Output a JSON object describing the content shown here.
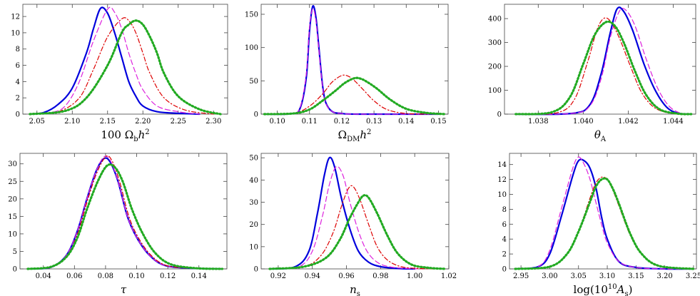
{
  "colors": {
    "blue": "#0000dd",
    "magenta": "#dd22dd",
    "red": "#dd0000",
    "green": "#22aa22"
  },
  "chart_data": [
    {
      "type": "line",
      "xlabel_parts": [
        [
          "100 Ω",
          "n"
        ],
        [
          "b",
          "sub"
        ],
        [
          "h",
          "it"
        ],
        [
          "2",
          "sup"
        ]
      ],
      "xlim": [
        2.03,
        2.32
      ],
      "ylim": [
        0,
        13.5
      ],
      "xticks": [
        2.05,
        2.1,
        2.15,
        2.2,
        2.25,
        2.3
      ],
      "xtick_labels": [
        "2.05",
        "2.10",
        "2.15",
        "2.20",
        "2.25",
        "2.30"
      ],
      "yticks": [
        0,
        2,
        4,
        6,
        8,
        10,
        12
      ],
      "ytick_labels": [
        "0",
        "2",
        "4",
        "6",
        "8",
        "10",
        "12"
      ],
      "series": [
        {
          "color": "blue",
          "style": "solid",
          "x": [
            2.04,
            2.06,
            2.08,
            2.1,
            2.12,
            2.13,
            2.14,
            2.15,
            2.16,
            2.17,
            2.18,
            2.19,
            2.2,
            2.22,
            2.25,
            2.28
          ],
          "y": [
            0,
            0.2,
            1.2,
            3.2,
            7.5,
            10.5,
            13.0,
            12.4,
            10.0,
            7.0,
            4.0,
            2.2,
            1.0,
            0.3,
            0.1,
            0
          ]
        },
        {
          "color": "magenta",
          "style": "dash",
          "x": [
            2.04,
            2.07,
            2.09,
            2.11,
            2.13,
            2.15,
            2.16,
            2.17,
            2.18,
            2.19,
            2.2,
            2.22,
            2.25,
            2.28
          ],
          "y": [
            0,
            0.2,
            1.0,
            4.0,
            9.0,
            12.9,
            12.5,
            10.5,
            7.5,
            5.0,
            3.0,
            1.0,
            0.3,
            0
          ]
        },
        {
          "color": "red",
          "style": "dashdot",
          "x": [
            2.04,
            2.08,
            2.11,
            2.13,
            2.15,
            2.17,
            2.18,
            2.19,
            2.2,
            2.21,
            2.23,
            2.26,
            2.3
          ],
          "y": [
            0,
            0.3,
            2.0,
            5.5,
            9.5,
            11.7,
            11.5,
            10.0,
            7.5,
            5.0,
            2.0,
            0.5,
            0
          ]
        },
        {
          "color": "green",
          "style": "dot",
          "x": [
            2.04,
            2.09,
            2.12,
            2.15,
            2.17,
            2.18,
            2.19,
            2.2,
            2.21,
            2.22,
            2.23,
            2.25,
            2.28,
            2.31
          ],
          "y": [
            0,
            0.4,
            2.0,
            6.0,
            10.0,
            11.0,
            11.5,
            11.0,
            9.5,
            7.5,
            5.0,
            2.2,
            0.6,
            0
          ]
        }
      ]
    },
    {
      "type": "line",
      "xlabel_parts": [
        [
          "Ω",
          "n"
        ],
        [
          "DM",
          "sub"
        ],
        [
          "h",
          "it"
        ],
        [
          "2",
          "sup"
        ]
      ],
      "xlim": [
        0.095,
        0.153
      ],
      "ylim": [
        0,
        165
      ],
      "xticks": [
        0.1,
        0.11,
        0.12,
        0.13,
        0.14,
        0.15
      ],
      "xtick_labels": [
        "0.10",
        "0.11",
        "0.12",
        "0.13",
        "0.14",
        "0.15"
      ],
      "yticks": [
        0,
        50,
        100,
        150
      ],
      "ytick_labels": [
        "0",
        "50",
        "100",
        "150"
      ],
      "series": [
        {
          "color": "blue",
          "style": "solid",
          "x": [
            0.096,
            0.104,
            0.107,
            0.109,
            0.11,
            0.111,
            0.112,
            0.113,
            0.114,
            0.115,
            0.117,
            0.12,
            0.125,
            0.15
          ],
          "y": [
            0,
            0.5,
            8,
            55,
            125,
            162,
            145,
            95,
            45,
            18,
            4,
            1,
            0,
            0
          ]
        },
        {
          "color": "magenta",
          "style": "dash",
          "x": [
            0.096,
            0.104,
            0.107,
            0.109,
            0.11,
            0.111,
            0.112,
            0.113,
            0.114,
            0.115,
            0.117,
            0.12,
            0.125,
            0.15
          ],
          "y": [
            0,
            0.5,
            9,
            60,
            130,
            158,
            140,
            92,
            43,
            17,
            4,
            1,
            0,
            0
          ]
        },
        {
          "color": "red",
          "style": "dashdot",
          "x": [
            0.096,
            0.105,
            0.11,
            0.114,
            0.117,
            0.12,
            0.122,
            0.124,
            0.127,
            0.13,
            0.134,
            0.14,
            0.15
          ],
          "y": [
            0,
            1,
            12,
            30,
            48,
            58,
            57,
            50,
            35,
            20,
            7,
            1,
            0
          ]
        },
        {
          "color": "green",
          "style": "dot",
          "x": [
            0.096,
            0.105,
            0.11,
            0.114,
            0.118,
            0.121,
            0.124,
            0.126,
            0.128,
            0.131,
            0.135,
            0.14,
            0.146,
            0.152
          ],
          "y": [
            0,
            1,
            7,
            20,
            35,
            47,
            54,
            53,
            48,
            38,
            22,
            8,
            2,
            0
          ]
        }
      ]
    },
    {
      "type": "line",
      "xlabel_parts": [
        [
          "θ",
          "it"
        ],
        [
          "A",
          "sub"
        ]
      ],
      "xlim": [
        1.0365,
        1.045
      ],
      "ylim": [
        0,
        460
      ],
      "xticks": [
        1.038,
        1.04,
        1.042,
        1.044
      ],
      "xtick_labels": [
        "1.038",
        "1.040",
        "1.042",
        "1.044"
      ],
      "yticks": [
        0,
        100,
        200,
        300,
        400
      ],
      "ytick_labels": [
        "0",
        "100",
        "200",
        "300",
        "400"
      ],
      "series": [
        {
          "color": "blue",
          "style": "solid",
          "x": [
            1.037,
            1.0395,
            1.0403,
            1.0408,
            1.0412,
            1.0415,
            1.0418,
            1.0422,
            1.0427,
            1.0432,
            1.0437,
            1.0442,
            1.0448
          ],
          "y": [
            0,
            3,
            40,
            170,
            340,
            440,
            430,
            350,
            210,
            100,
            30,
            4,
            0
          ]
        },
        {
          "color": "magenta",
          "style": "dash",
          "x": [
            1.037,
            1.0395,
            1.0403,
            1.0408,
            1.0412,
            1.0416,
            1.0419,
            1.0423,
            1.0428,
            1.0433,
            1.0438,
            1.0443,
            1.0448
          ],
          "y": [
            0,
            3,
            35,
            150,
            320,
            430,
            435,
            370,
            230,
            110,
            35,
            5,
            0
          ]
        },
        {
          "color": "red",
          "style": "dashdot",
          "x": [
            1.037,
            1.0388,
            1.0396,
            1.0402,
            1.0406,
            1.0409,
            1.0412,
            1.0416,
            1.0421,
            1.0426,
            1.0432,
            1.044,
            1.0448
          ],
          "y": [
            0,
            5,
            60,
            220,
            350,
            400,
            390,
            320,
            200,
            90,
            25,
            2,
            0
          ]
        },
        {
          "color": "green",
          "style": "dot",
          "x": [
            1.037,
            1.0386,
            1.0394,
            1.04,
            1.0405,
            1.041,
            1.0414,
            1.0418,
            1.0423,
            1.0428,
            1.0434,
            1.0442,
            1.0448
          ],
          "y": [
            0,
            8,
            70,
            210,
            330,
            385,
            370,
            300,
            180,
            80,
            20,
            2,
            0
          ]
        }
      ]
    },
    {
      "type": "line",
      "xlabel_parts": [
        [
          "τ",
          "it"
        ]
      ],
      "xlim": [
        0.025,
        0.158
      ],
      "ylim": [
        0,
        33
      ],
      "xticks": [
        0.04,
        0.06,
        0.08,
        0.1,
        0.12,
        0.14
      ],
      "xtick_labels": [
        "0.04",
        "0.06",
        "0.08",
        "0.10",
        "0.12",
        "0.14"
      ],
      "yticks": [
        0,
        5,
        10,
        15,
        20,
        25,
        30
      ],
      "ytick_labels": [
        "0",
        "5",
        "10",
        "15",
        "20",
        "25",
        "30"
      ],
      "series": [
        {
          "color": "blue",
          "style": "solid",
          "x": [
            0.03,
            0.045,
            0.055,
            0.062,
            0.068,
            0.074,
            0.079,
            0.083,
            0.088,
            0.094,
            0.1,
            0.108,
            0.118,
            0.135,
            0.155
          ],
          "y": [
            0,
            0.5,
            4,
            11,
            20,
            28,
            31.5,
            30.5,
            25,
            15,
            9,
            4,
            1,
            0.2,
            0
          ]
        },
        {
          "color": "magenta",
          "style": "dash",
          "x": [
            0.03,
            0.045,
            0.055,
            0.062,
            0.068,
            0.074,
            0.079,
            0.083,
            0.088,
            0.094,
            0.1,
            0.108,
            0.118,
            0.135,
            0.155
          ],
          "y": [
            0,
            0.5,
            4,
            11,
            20,
            28,
            32,
            31,
            25,
            15,
            9,
            4,
            1,
            0.2,
            0
          ]
        },
        {
          "color": "red",
          "style": "dashdot",
          "x": [
            0.03,
            0.045,
            0.055,
            0.062,
            0.068,
            0.074,
            0.08,
            0.084,
            0.089,
            0.095,
            0.101,
            0.109,
            0.119,
            0.135,
            0.155
          ],
          "y": [
            0,
            0.5,
            3.5,
            10,
            19,
            27,
            32,
            31,
            25,
            15,
            9,
            4,
            1,
            0.2,
            0
          ]
        },
        {
          "color": "green",
          "style": "dot",
          "x": [
            0.03,
            0.045,
            0.055,
            0.062,
            0.068,
            0.075,
            0.081,
            0.086,
            0.091,
            0.097,
            0.104,
            0.112,
            0.122,
            0.138,
            0.155
          ],
          "y": [
            0,
            0.6,
            3.5,
            9,
            17,
            25,
            29.5,
            29,
            25,
            17,
            10,
            4.5,
            1.3,
            0.2,
            0
          ]
        }
      ]
    },
    {
      "type": "line",
      "xlabel_parts": [
        [
          "n",
          "it"
        ],
        [
          "s",
          "sub"
        ]
      ],
      "xlim": [
        0.91,
        1.02
      ],
      "ylim": [
        0,
        52
      ],
      "xticks": [
        0.92,
        0.94,
        0.96,
        0.98,
        1.0,
        1.02
      ],
      "xtick_labels": [
        "0.92",
        "0.94",
        "0.96",
        "0.98",
        "1.00",
        "1.02"
      ],
      "yticks": [
        0,
        10,
        20,
        30,
        40,
        50
      ],
      "ytick_labels": [
        "0",
        "10",
        "20",
        "30",
        "40",
        "50"
      ],
      "series": [
        {
          "color": "blue",
          "style": "solid",
          "x": [
            0.915,
            0.93,
            0.938,
            0.943,
            0.947,
            0.95,
            0.953,
            0.957,
            0.962,
            0.967,
            0.973,
            0.98,
            0.99,
            1.0
          ],
          "y": [
            0,
            1,
            8,
            25,
            42,
            50,
            46,
            32,
            18,
            8,
            3,
            1,
            0.2,
            0
          ]
        },
        {
          "color": "magenta",
          "style": "dash",
          "x": [
            0.915,
            0.932,
            0.94,
            0.946,
            0.95,
            0.954,
            0.958,
            0.962,
            0.967,
            0.972,
            0.978,
            0.985,
            0.995,
            1.005
          ],
          "y": [
            0,
            1,
            8,
            24,
            38,
            46,
            42,
            30,
            17,
            8,
            3,
            1,
            0.2,
            0
          ]
        },
        {
          "color": "red",
          "style": "dashdot",
          "x": [
            0.915,
            0.935,
            0.945,
            0.952,
            0.957,
            0.961,
            0.964,
            0.968,
            0.973,
            0.978,
            0.984,
            0.992,
            1.002,
            1.012
          ],
          "y": [
            0,
            1,
            6,
            16,
            28,
            36,
            37,
            31,
            20,
            10,
            4,
            1,
            0.2,
            0
          ]
        },
        {
          "color": "green",
          "style": "dot",
          "x": [
            0.915,
            0.935,
            0.948,
            0.956,
            0.962,
            0.967,
            0.97,
            0.973,
            0.978,
            0.984,
            0.99,
            0.998,
            1.008,
            1.018
          ],
          "y": [
            0,
            1,
            5,
            13,
            23,
            30,
            33,
            32,
            25,
            15,
            7,
            2,
            0.5,
            0
          ]
        }
      ]
    },
    {
      "type": "line",
      "xlabel_parts": [
        [
          "log(10",
          "n"
        ],
        [
          "10",
          "sup"
        ],
        [
          "A",
          "it"
        ],
        [
          "s",
          "sub"
        ],
        [
          ")",
          "n"
        ]
      ],
      "xlim": [
        2.93,
        3.255
      ],
      "ylim": [
        0,
        15.5
      ],
      "xticks": [
        2.95,
        3.0,
        3.05,
        3.1,
        3.15,
        3.2,
        3.25
      ],
      "xtick_labels": [
        "2.95",
        "3.00",
        "3.05",
        "3.10",
        "3.15",
        "3.20",
        "3.25"
      ],
      "yticks": [
        0,
        2,
        4,
        6,
        8,
        10,
        12,
        14
      ],
      "ytick_labels": [
        "0",
        "2",
        "4",
        "6",
        "8",
        "10",
        "12",
        "14"
      ],
      "series": [
        {
          "color": "blue",
          "style": "solid",
          "x": [
            2.94,
            2.98,
            3.0,
            3.02,
            3.04,
            3.05,
            3.06,
            3.07,
            3.08,
            3.09,
            3.1,
            3.12,
            3.15,
            3.2,
            3.25
          ],
          "y": [
            0,
            0.3,
            2,
            7,
            12.5,
            14.5,
            14.5,
            13.5,
            11,
            7,
            4,
            1,
            0.2,
            0,
            0
          ]
        },
        {
          "color": "magenta",
          "style": "dash",
          "x": [
            2.94,
            2.98,
            3.0,
            3.02,
            3.04,
            3.05,
            3.06,
            3.07,
            3.08,
            3.09,
            3.1,
            3.12,
            3.15,
            3.2,
            3.25
          ],
          "y": [
            0,
            0.3,
            2.5,
            8,
            13.5,
            15,
            14,
            12,
            9,
            6,
            3.5,
            1,
            0.2,
            0,
            0
          ]
        },
        {
          "color": "red",
          "style": "dashdot",
          "x": [
            2.94,
            3.0,
            3.03,
            3.05,
            3.07,
            3.08,
            3.09,
            3.1,
            3.11,
            3.12,
            3.14,
            3.16,
            3.19,
            3.25
          ],
          "y": [
            0,
            0.3,
            2,
            5,
            9.5,
            11.5,
            12.3,
            12,
            10.5,
            8.5,
            4.5,
            2,
            0.4,
            0
          ]
        },
        {
          "color": "green",
          "style": "dot",
          "x": [
            2.94,
            3.0,
            3.03,
            3.05,
            3.07,
            3.08,
            3.09,
            3.1,
            3.11,
            3.12,
            3.14,
            3.16,
            3.19,
            3.25
          ],
          "y": [
            0,
            0.3,
            2,
            5,
            9,
            11,
            12,
            12,
            10.7,
            8.8,
            4.7,
            2,
            0.4,
            0
          ]
        }
      ]
    }
  ]
}
